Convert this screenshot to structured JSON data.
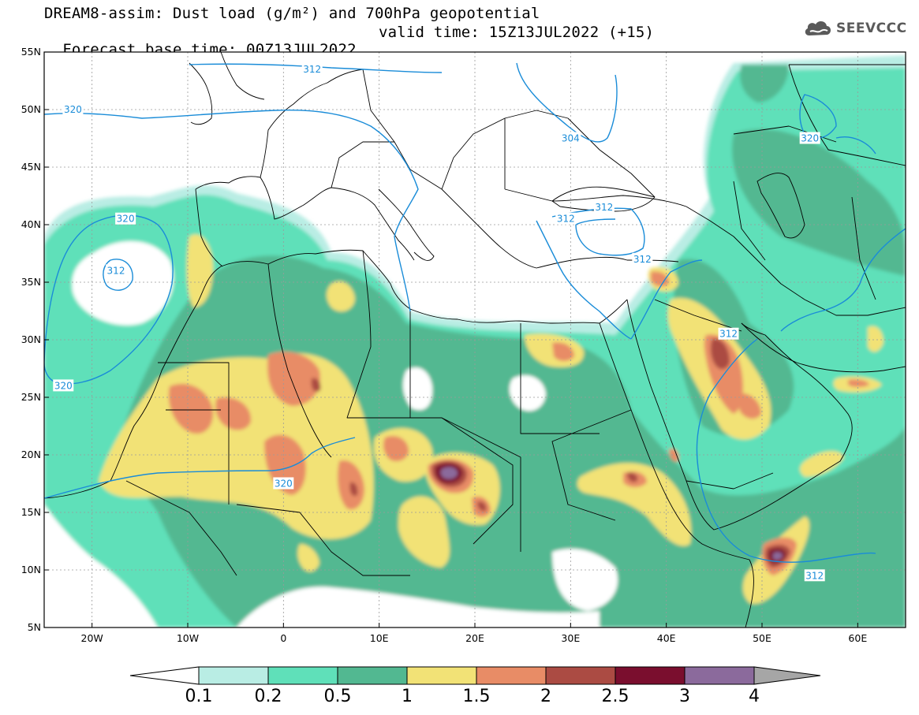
{
  "header": {
    "title": "DREAM8-assim: Dust load (g/m²) and 700hPa geopotential",
    "base_time": "Forecast base time: 00Z13JUL2022",
    "valid_time": "valid time: 15Z13JUL2022 (+15)",
    "logo_text": "SEEVCCC",
    "logo_icon": "cloud-icon"
  },
  "map": {
    "lat_labels": [
      "55N",
      "50N",
      "45N",
      "40N",
      "35N",
      "30N",
      "25N",
      "20N",
      "15N",
      "10N",
      "5N"
    ],
    "lon_labels": [
      "20W",
      "10W",
      "0",
      "10E",
      "20E",
      "30E",
      "40E",
      "50E",
      "60E"
    ],
    "lat_range": [
      5,
      55
    ],
    "lon_range": [
      -25,
      65
    ],
    "contour_labels": [
      {
        "text": "312",
        "lon": 3,
        "lat": 53.5
      },
      {
        "text": "320",
        "lon": -22,
        "lat": 50
      },
      {
        "text": "304",
        "lon": 30,
        "lat": 47.5
      },
      {
        "text": "320",
        "lon": 55,
        "lat": 47.5
      },
      {
        "text": "312",
        "lon": 33.5,
        "lat": 41.5
      },
      {
        "text": "312",
        "lon": 29.5,
        "lat": 40.5
      },
      {
        "text": "320",
        "lon": -16.5,
        "lat": 40.5
      },
      {
        "text": "312",
        "lon": -17.5,
        "lat": 36
      },
      {
        "text": "312",
        "lon": 37.5,
        "lat": 37
      },
      {
        "text": "312",
        "lon": 46.5,
        "lat": 30.5
      },
      {
        "text": "320",
        "lon": -23,
        "lat": 26
      },
      {
        "text": "320",
        "lon": 0,
        "lat": 17.5
      },
      {
        "text": "312",
        "lon": 55.5,
        "lat": 9.5
      }
    ]
  },
  "colorbar": {
    "labels": [
      "0.1",
      "0.2",
      "0.5",
      "1",
      "1.5",
      "2",
      "2.5",
      "3",
      "4"
    ],
    "colors": [
      "#b9ede4",
      "#5fe0b9",
      "#52b891",
      "#f2e276",
      "#e88c66",
      "#ab4b43",
      "#7a0e2e",
      "#8b6a9c"
    ],
    "under_color": "#ffffff",
    "over_color": "#a6a6a6"
  }
}
